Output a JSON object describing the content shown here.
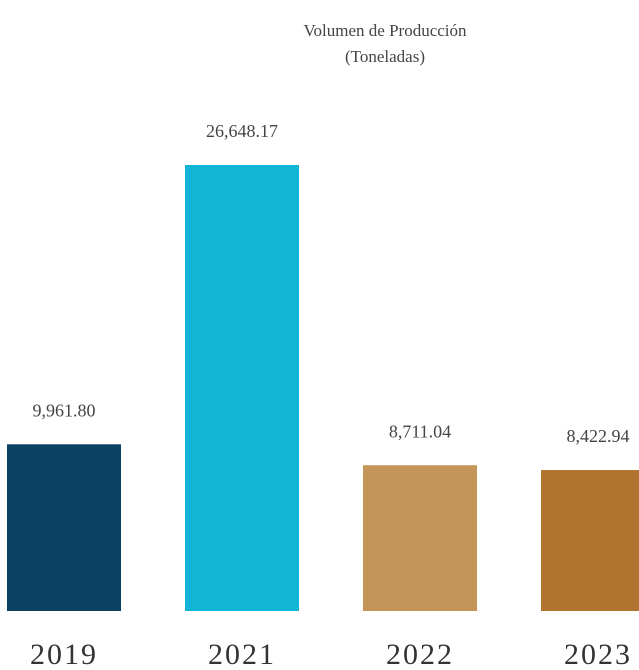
{
  "chart_data": {
    "type": "bar",
    "title": "Volumen de Producción",
    "subtitle": "(Toneladas)",
    "categories": [
      "2019",
      "2021",
      "2022",
      "2023"
    ],
    "values": [
      9961.8,
      26648.17,
      8711.04,
      8422.94
    ],
    "value_labels": [
      "9,961.80",
      "26,648.17",
      "8,711.04",
      "8,422.94"
    ],
    "colors": [
      "#0b4263",
      "#12b5d6",
      "#c49558",
      "#b0742e"
    ]
  }
}
